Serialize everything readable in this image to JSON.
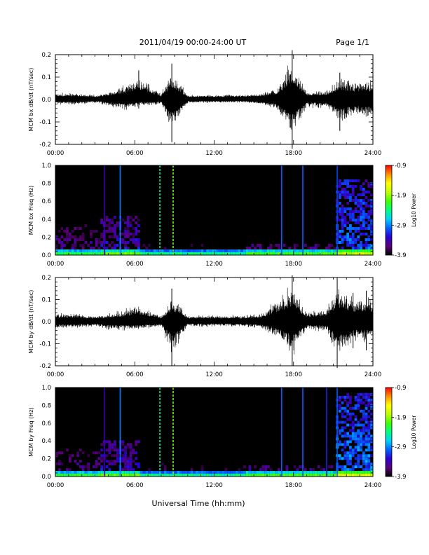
{
  "header": {
    "title": "2011/04/19  00:00-24:00 UT",
    "page": "Page 1/1"
  },
  "footer": {
    "xlabel": "Universal Time (hh:mm)"
  },
  "colorbar": {
    "label": "Log10 Power",
    "ticks": [
      "-0.9",
      "-1.9",
      "-2.9",
      "-3.9"
    ],
    "range": [
      -3.9,
      -0.9
    ],
    "colors": [
      "#000000",
      "#5a007a",
      "#2a00d0",
      "#0060ff",
      "#00d0ff",
      "#00ff80",
      "#40ff00",
      "#c0ff00",
      "#ffff00",
      "#ff9000",
      "#ff0000"
    ]
  },
  "chart_data": [
    {
      "type": "line",
      "id": "bx-waveform",
      "ylabel": "MCM bx dB/dt (nT/sec)",
      "xlim": [
        0,
        24
      ],
      "ylim": [
        -0.2,
        0.2
      ],
      "x_ticks": [
        "00:00",
        "06:00",
        "12:00",
        "18:00",
        "24:00"
      ],
      "y_ticks": [
        "0.2",
        "0.1",
        "0.0",
        "-0.1",
        "-0.2"
      ],
      "series": [
        {
          "x": [
            0,
            1.5,
            3,
            4.2,
            5.1,
            6.3,
            8,
            8.8,
            10,
            12,
            14,
            15.5,
            16.7,
            17.9,
            19,
            20.5,
            21.5,
            22.5,
            23.5,
            24
          ],
          "y_max": [
            0.03,
            0.03,
            0.02,
            0.04,
            0.07,
            0.13,
            0.03,
            0.16,
            0.02,
            0.02,
            0.02,
            0.03,
            0.06,
            0.22,
            0.04,
            0.05,
            0.12,
            0.1,
            0.11,
            0.1
          ],
          "y_min": [
            -0.03,
            -0.03,
            -0.02,
            -0.04,
            -0.06,
            -0.04,
            -0.03,
            -0.19,
            -0.02,
            -0.02,
            -0.02,
            -0.03,
            -0.06,
            -0.22,
            -0.04,
            -0.05,
            -0.14,
            -0.09,
            -0.11,
            -0.09
          ]
        }
      ]
    },
    {
      "type": "heatmap",
      "id": "bx-spectrogram",
      "ylabel": "MCM bx Freq (Hz)",
      "xlim": [
        0,
        24
      ],
      "ylim": [
        0,
        1.0
      ],
      "x_ticks": [
        "00:00",
        "06:00",
        "12:00",
        "18:00",
        "24:00"
      ],
      "y_ticks": [
        "1.0",
        "0.8",
        "0.6",
        "0.4",
        "0.2",
        "0.0"
      ],
      "activity": [
        {
          "from": 0,
          "to": 3.5,
          "max_freq": 0.35,
          "power": -3.3
        },
        {
          "from": 3.5,
          "to": 6.5,
          "max_freq": 0.45,
          "power": -3.1
        },
        {
          "from": 6.5,
          "to": 14.5,
          "max_freq": 0.15,
          "power": -3.5
        },
        {
          "from": 14.5,
          "to": 21.2,
          "max_freq": 0.12,
          "power": -3.2
        },
        {
          "from": 21.2,
          "to": 24,
          "max_freq": 0.85,
          "power": -2.8
        }
      ],
      "vertical_lines": [
        {
          "time": 3.7,
          "power": -3.4
        },
        {
          "time": 4.9,
          "power": -2.9
        },
        {
          "time": 7.9,
          "power": -2.5
        },
        {
          "time": 8.9,
          "power": -2.0
        },
        {
          "time": 17.1,
          "power": -3.0
        },
        {
          "time": 18.7,
          "power": -3.0
        },
        {
          "time": 21.3,
          "power": -3.1
        }
      ]
    },
    {
      "type": "line",
      "id": "by-waveform",
      "ylabel": "MCM by dB/dt (nT/sec)",
      "xlim": [
        0,
        24
      ],
      "ylim": [
        -0.2,
        0.2
      ],
      "x_ticks": [
        "00:00",
        "06:00",
        "12:00",
        "18:00",
        "24:00"
      ],
      "y_ticks": [
        "0.2",
        "0.1",
        "0.0",
        "-0.1",
        "-0.2"
      ],
      "series": [
        {
          "x": [
            0,
            1.5,
            3,
            4.2,
            5.1,
            6.3,
            8,
            8.8,
            10,
            12,
            14,
            15.5,
            16.7,
            17.9,
            19,
            20.5,
            21.3,
            22.5,
            23.5,
            24
          ],
          "y_max": [
            0.04,
            0.04,
            0.03,
            0.04,
            0.06,
            0.09,
            0.03,
            0.15,
            0.03,
            0.03,
            0.03,
            0.04,
            0.12,
            0.21,
            0.05,
            0.07,
            0.2,
            0.13,
            0.14,
            0.12
          ],
          "y_min": [
            -0.04,
            -0.04,
            -0.03,
            -0.05,
            -0.05,
            -0.05,
            -0.03,
            -0.2,
            -0.03,
            -0.03,
            -0.03,
            -0.04,
            -0.09,
            -0.2,
            -0.05,
            -0.06,
            -0.21,
            -0.12,
            -0.13,
            -0.11
          ]
        }
      ]
    },
    {
      "type": "heatmap",
      "id": "by-spectrogram",
      "ylabel": "MCM by Freq (Hz)",
      "xlim": [
        0,
        24
      ],
      "ylim": [
        0,
        1.0
      ],
      "x_ticks": [
        "00:00",
        "06:00",
        "12:00",
        "18:00",
        "24:00"
      ],
      "y_ticks": [
        "1.0",
        "0.8",
        "0.6",
        "0.4",
        "0.2",
        "0.0"
      ],
      "activity": [
        {
          "from": 0,
          "to": 3.5,
          "max_freq": 0.3,
          "power": -3.3
        },
        {
          "from": 3.5,
          "to": 6.5,
          "max_freq": 0.4,
          "power": -3.1
        },
        {
          "from": 6.5,
          "to": 14.5,
          "max_freq": 0.18,
          "power": -3.5
        },
        {
          "from": 14.5,
          "to": 21.2,
          "max_freq": 0.14,
          "power": -3.2
        },
        {
          "from": 21.2,
          "to": 24,
          "max_freq": 0.95,
          "power": -2.7
        }
      ],
      "vertical_lines": [
        {
          "time": 3.7,
          "power": -3.4
        },
        {
          "time": 4.9,
          "power": -2.9
        },
        {
          "time": 7.9,
          "power": -2.5
        },
        {
          "time": 8.9,
          "power": -2.0
        },
        {
          "time": 17.1,
          "power": -3.0
        },
        {
          "time": 18.7,
          "power": -3.0
        },
        {
          "time": 20.5,
          "power": -3.2
        },
        {
          "time": 21.3,
          "power": -3.0
        }
      ]
    }
  ]
}
